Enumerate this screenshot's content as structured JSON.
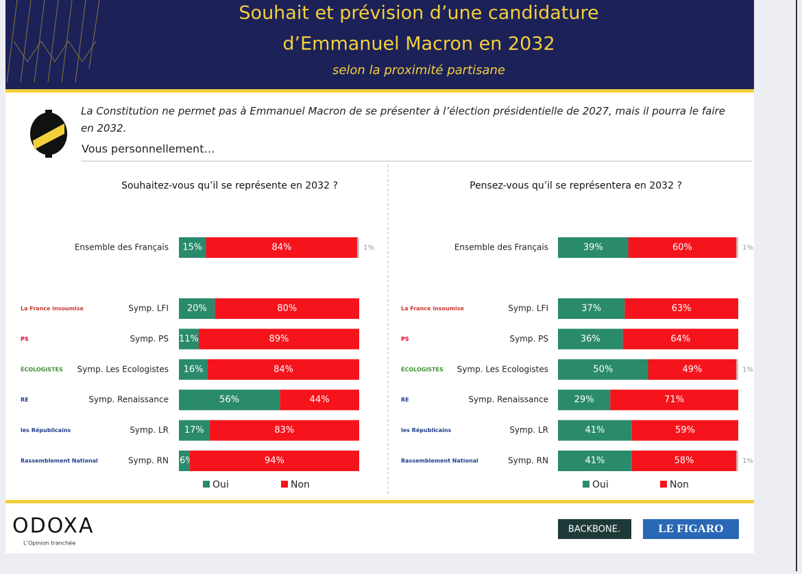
{
  "header": {
    "title_lines": [
      "Souhait et prévision d’une candidature",
      "d’Emmanuel Macron en 2032"
    ],
    "subtitle": "selon la proximité partisane"
  },
  "question": {
    "text": "La Constitution ne permet pas à Emmanuel Macron de se présenter à l’élection présidentielle de 2027, mais il pourra le faire en 2032.",
    "prompt": "Vous personnellement…"
  },
  "party_logos": [
    "La France insoumise",
    "PS",
    "ÉCOLOGISTES",
    "RE",
    "les Républicains",
    "Rassemblement National"
  ],
  "chart_data": [
    {
      "type": "stacked-bar",
      "title": "Souhaitez-vous qu’il se représente en 2032 ?",
      "categories": [
        "Ensemble des Français",
        "Symp. LFI",
        "Symp. PS",
        "Symp. Les Ecologistes",
        "Symp. Renaissance",
        "Symp. LR",
        "Symp. RN"
      ],
      "series": [
        {
          "name": "Oui",
          "color": "#2a8a6c",
          "values": [
            15,
            20,
            11,
            16,
            56,
            17,
            6
          ],
          "value_labels": [
            "15%",
            "20%",
            "11%",
            "16%",
            "56%",
            "17%",
            "6%"
          ]
        },
        {
          "name": "Non",
          "color": "#f5141c",
          "values": [
            84,
            80,
            89,
            84,
            44,
            83,
            94
          ],
          "value_labels": [
            "84%",
            "80%",
            "89%",
            "84%",
            "44%",
            "83%",
            "94%"
          ]
        },
        {
          "color": "#c8c8c8",
          "values": [
            1,
            null,
            null,
            null,
            null,
            null,
            null
          ],
          "value_labels": [
            "1%",
            null,
            null,
            null,
            null,
            null,
            null
          ]
        }
      ],
      "legend": "bottom"
    },
    {
      "type": "stacked-bar",
      "title": "Pensez-vous qu’il se représentera en 2032 ?",
      "categories": [
        "Ensemble des Français",
        "Symp. LFI",
        "Symp. PS",
        "Symp. Les Ecologistes",
        "Symp. Renaissance",
        "Symp. LR",
        "Symp. RN"
      ],
      "series": [
        {
          "name": "Oui",
          "color": "#2a8a6c",
          "values": [
            39,
            37,
            36,
            50,
            29,
            41,
            41
          ],
          "value_labels": [
            "39%",
            "37%",
            "36%",
            "50%",
            "29%",
            "41%",
            "41%"
          ]
        },
        {
          "name": "Non",
          "color": "#f5141c",
          "values": [
            60,
            63,
            64,
            49,
            71,
            59,
            58
          ],
          "value_labels": [
            "60%",
            "63%",
            "64%",
            "49%",
            "71%",
            "59%",
            "58%"
          ]
        },
        {
          "color": "#c8c8c8",
          "values": [
            1,
            null,
            null,
            1,
            null,
            null,
            1
          ],
          "value_labels": [
            "1%",
            null,
            null,
            "1%",
            null,
            null,
            "1%"
          ]
        }
      ],
      "legend": "bottom"
    }
  ],
  "footer": {
    "brand": "ODOXA",
    "tagline": "L’Opinion tranchée",
    "partners": [
      "BACKBONE.",
      "LE FIGARO"
    ]
  }
}
